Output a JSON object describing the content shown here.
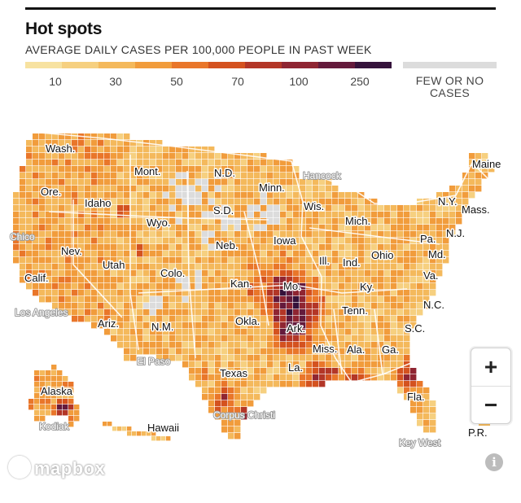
{
  "title": "Hot spots",
  "subtitle": "AVERAGE DAILY CASES PER 100,000 PEOPLE IN PAST WEEK",
  "legend": {
    "colors": [
      "#f7e2a0",
      "#f6d080",
      "#f4b95c",
      "#f19c3c",
      "#e9762a",
      "#d4521f",
      "#b33627",
      "#8f2532",
      "#641a3c",
      "#35123b"
    ],
    "ticks": [
      "10",
      "30",
      "50",
      "70",
      "100",
      "250"
    ],
    "few_cases_label": "FEW OR NO CASES",
    "few_cases_color": "#dcdcdc"
  },
  "map": {
    "state_labels": [
      "Wash.",
      "Mont.",
      "N.D.",
      "Minn.",
      "Maine",
      "Ore.",
      "Idaho",
      "Wyo.",
      "S.D.",
      "Wis.",
      "N.Y.",
      "Mass.",
      "Mich.",
      "Pa.",
      "N.J.",
      "Nev.",
      "Neb.",
      "Iowa",
      "Ohio",
      "Md.",
      "Calif.",
      "Utah",
      "Colo.",
      "Ill.",
      "Ind.",
      "Kan.",
      "Mo.",
      "Ky.",
      "Va.",
      "N.C.",
      "Tenn.",
      "Ariz.",
      "N.M.",
      "Okla.",
      "Ark.",
      "S.C.",
      "Miss.",
      "Ala.",
      "Ga.",
      "La.",
      "Texas",
      "Alaska",
      "Fla.",
      "Hawaii",
      "P.R."
    ],
    "city_labels": [
      "Hancock",
      "Chico",
      "Los Angeles",
      "El Paso",
      "Corpus Christi",
      "Kodiak",
      "Key West"
    ]
  },
  "controls": {
    "zoom_in": "+",
    "zoom_out": "−",
    "info": "i"
  },
  "attribution": "mapbox"
}
